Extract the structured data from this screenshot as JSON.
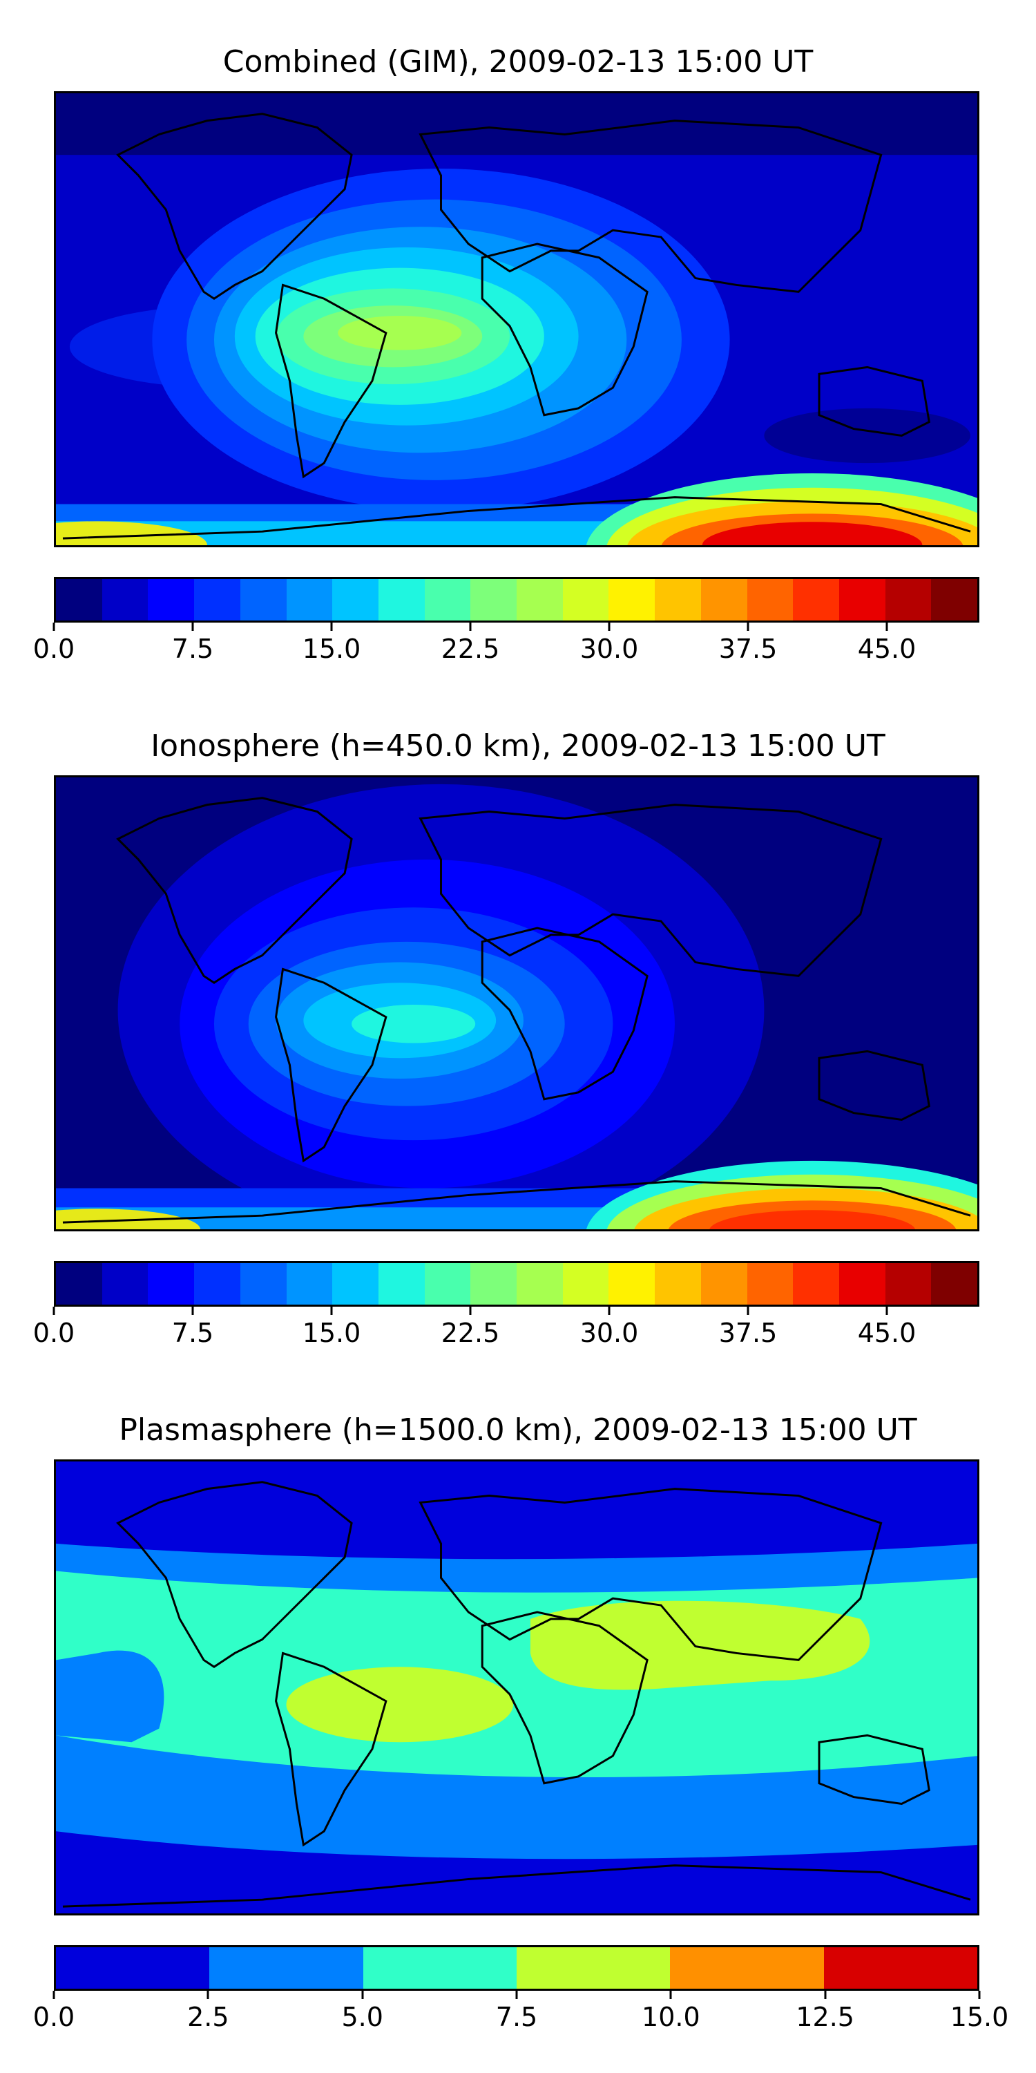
{
  "panels": [
    {
      "title": "Combined (GIM), 2009-02-13 15:00 UT",
      "colorbar": {
        "min": 0.0,
        "max": 50.0,
        "levels": 20,
        "ticks": [
          "0.0",
          "7.5",
          "15.0",
          "22.5",
          "30.0",
          "37.5",
          "45.0"
        ],
        "colors": [
          "#00007f",
          "#0000c8",
          "#0000ff",
          "#0030ff",
          "#0064ff",
          "#0094ff",
          "#00c4ff",
          "#1ff6e0",
          "#49ffad",
          "#7dff7a",
          "#a6ff50",
          "#d4ff23",
          "#fff200",
          "#ffc400",
          "#ff9400",
          "#ff6400",
          "#ff3000",
          "#e80000",
          "#b50000",
          "#7f0000"
        ]
      }
    },
    {
      "title": "Ionosphere  (h=450.0 km), 2009-02-13 15:00 UT",
      "colorbar": {
        "min": 0.0,
        "max": 50.0,
        "levels": 20,
        "ticks": [
          "0.0",
          "7.5",
          "15.0",
          "22.5",
          "30.0",
          "37.5",
          "45.0"
        ],
        "colors": [
          "#00007f",
          "#0000c8",
          "#0000ff",
          "#0030ff",
          "#0064ff",
          "#0094ff",
          "#00c4ff",
          "#1ff6e0",
          "#49ffad",
          "#7dff7a",
          "#a6ff50",
          "#d4ff23",
          "#fff200",
          "#ffc400",
          "#ff9400",
          "#ff6400",
          "#ff3000",
          "#e80000",
          "#b50000",
          "#7f0000"
        ]
      }
    },
    {
      "title": "Plasmasphere (h=1500.0 km), 2009-02-13 15:00 UT",
      "colorbar": {
        "min": 0.0,
        "max": 15.0,
        "levels": 6,
        "ticks": [
          "0.0",
          "2.5",
          "5.0",
          "7.5",
          "10.0",
          "12.5",
          "15.0"
        ],
        "colors": [
          "#0000dc",
          "#0080ff",
          "#30ffc8",
          "#c0ff30",
          "#ff9000",
          "#d80000"
        ]
      }
    }
  ]
}
